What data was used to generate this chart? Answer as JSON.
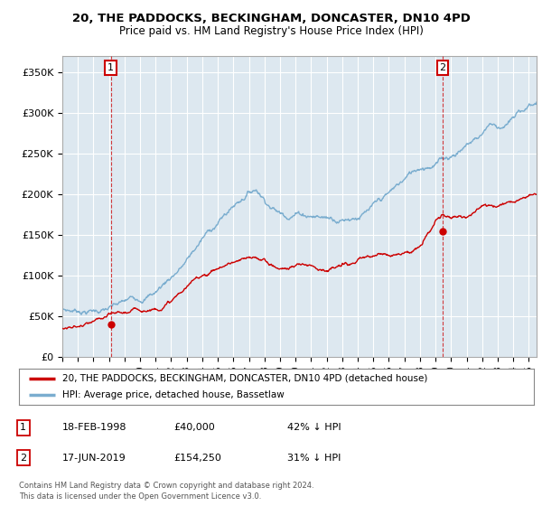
{
  "title1": "20, THE PADDOCKS, BECKINGHAM, DONCASTER, DN10 4PD",
  "title2": "Price paid vs. HM Land Registry's House Price Index (HPI)",
  "ylim": [
    0,
    370000
  ],
  "xlim_start": 1995.0,
  "xlim_end": 2025.5,
  "sale1_date": 1998.12,
  "sale1_price": 40000,
  "sale2_date": 2019.46,
  "sale2_price": 154250,
  "legend_line1": "20, THE PADDOCKS, BECKINGHAM, DONCASTER, DN10 4PD (detached house)",
  "legend_line2": "HPI: Average price, detached house, Bassetlaw",
  "table_row1": [
    "1",
    "18-FEB-1998",
    "£40,000",
    "42% ↓ HPI"
  ],
  "table_row2": [
    "2",
    "17-JUN-2019",
    "£154,250",
    "31% ↓ HPI"
  ],
  "footer1": "Contains HM Land Registry data © Crown copyright and database right 2024.",
  "footer2": "This data is licensed under the Open Government Licence v3.0.",
  "property_line_color": "#cc0000",
  "hpi_line_color": "#7aadcf",
  "sale_marker_color": "#cc0000",
  "dashed_line_color": "#cc0000",
  "background_color": "#ffffff",
  "chart_bg_color": "#dde8f0",
  "grid_color": "#ffffff",
  "box_color": "#cc0000",
  "hpi_nodes_x": [
    1995.0,
    1995.5,
    1996.0,
    1997.0,
    1998.0,
    1999.0,
    2000.0,
    2001.0,
    2002.0,
    2003.0,
    2004.0,
    2005.0,
    2006.0,
    2007.0,
    2007.5,
    2008.0,
    2009.0,
    2009.5,
    2010.0,
    2011.0,
    2012.0,
    2013.0,
    2014.0,
    2015.0,
    2016.0,
    2017.0,
    2018.0,
    2019.0,
    2020.0,
    2021.0,
    2022.0,
    2022.5,
    2023.0,
    2024.0,
    2025.0,
    2025.5
  ],
  "hpi_nodes_y": [
    58000,
    57000,
    57500,
    59000,
    61000,
    64000,
    70000,
    80000,
    100000,
    120000,
    145000,
    165000,
    185000,
    205000,
    210000,
    200000,
    185000,
    185000,
    190000,
    190000,
    188000,
    190000,
    198000,
    205000,
    215000,
    230000,
    245000,
    255000,
    265000,
    280000,
    295000,
    310000,
    305000,
    315000,
    330000,
    335000
  ],
  "prop_nodes_x": [
    1995.0,
    1996.0,
    1997.0,
    1998.0,
    1999.0,
    2000.0,
    2001.0,
    2002.0,
    2003.0,
    2004.0,
    2005.0,
    2006.0,
    2007.0,
    2008.0,
    2009.0,
    2010.0,
    2011.0,
    2012.0,
    2013.0,
    2014.0,
    2015.0,
    2016.0,
    2017.0,
    2018.0,
    2019.0,
    2019.5,
    2020.0,
    2021.0,
    2022.0,
    2023.0,
    2024.0,
    2025.0,
    2025.5
  ],
  "prop_nodes_y": [
    35000,
    35500,
    37000,
    40000,
    41000,
    43000,
    48000,
    60000,
    75000,
    90000,
    100000,
    108000,
    108000,
    105000,
    95000,
    100000,
    102000,
    100000,
    102000,
    105000,
    108000,
    112000,
    118000,
    125000,
    154250,
    162000,
    158000,
    165000,
    175000,
    180000,
    190000,
    200000,
    203000
  ]
}
